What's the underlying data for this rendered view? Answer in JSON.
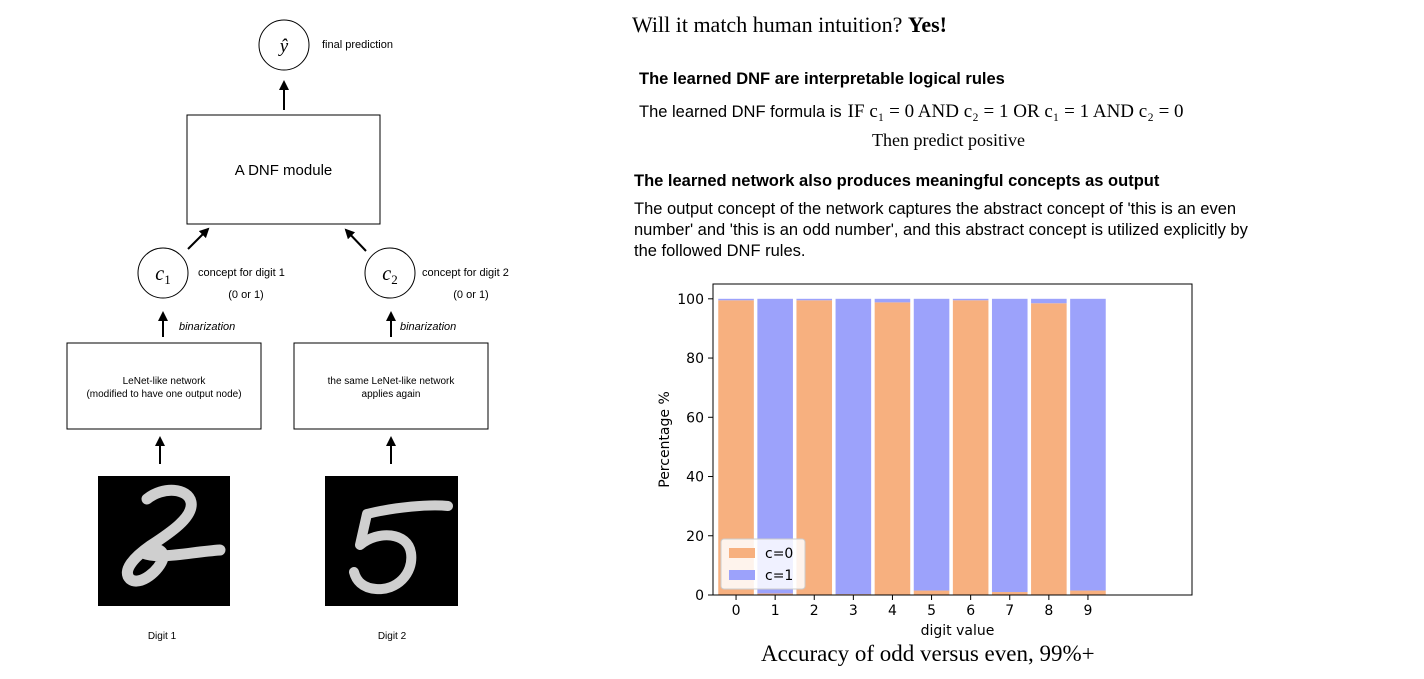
{
  "diagram": {
    "output_node": "ŷ",
    "output_label": "final prediction",
    "dnf_box_label": "A DNF module",
    "concept1_node": "c",
    "concept1_sub": "1",
    "concept1_label": "concept for digit 1",
    "concept1_range": "(0 or 1)",
    "concept2_node": "c",
    "concept2_sub": "2",
    "concept2_label": "concept for digit 2",
    "concept2_range": "(0 or 1)",
    "binarization_label_1": "binarization",
    "binarization_label_2": "binarization",
    "network1_line1": "LeNet-like network",
    "network1_line2": "(modified to have one output node)",
    "network2_line1": "the same LeNet-like network",
    "network2_line2": "applies again",
    "digit1_caption": "Digit 1",
    "digit2_caption": "Digit 2"
  },
  "text": {
    "headline_prefix": "Will it match human intuition? ",
    "headline_bold": "Yes!",
    "rules_heading": "The learned DNF are interpretable logical rules",
    "formula_prefix": "The learned DNF formula is",
    "formula_expr": "IF c₁ = 0 AND c₂ = 1 OR c₁ = 1 AND c₂ = 0",
    "formula_then": "Then predict positive",
    "concepts_heading": "The learned network also produces meaningful concepts as output",
    "paragraph": "The output concept of the network captures the abstract concept of 'this is an even number' and 'this is an odd number', and this abstract concept is utilized explicitly by the followed DNF rules.",
    "caption": "Accuracy of odd versus even, 99%+"
  },
  "chart_data": {
    "type": "bar",
    "stacked": true,
    "categories": [
      "0",
      "1",
      "2",
      "3",
      "4",
      "5",
      "6",
      "7",
      "8",
      "9"
    ],
    "series": [
      {
        "name": "c=0",
        "color": "#f7b07f",
        "values": [
          99.5,
          0.5,
          99.5,
          0.3,
          98.8,
          1.5,
          99.5,
          1.0,
          98.5,
          1.5
        ]
      },
      {
        "name": "c=1",
        "color": "#9ca2fb",
        "values": [
          0.5,
          99.5,
          0.5,
          99.7,
          1.2,
          98.5,
          0.5,
          99.0,
          1.5,
          98.5
        ]
      }
    ],
    "xlabel": "digit value",
    "ylabel": "Percentage %",
    "ylim": [
      0,
      105
    ],
    "yticks": [
      0,
      20,
      40,
      60,
      80,
      100
    ],
    "legend_position": "lower-left",
    "grid": false
  }
}
